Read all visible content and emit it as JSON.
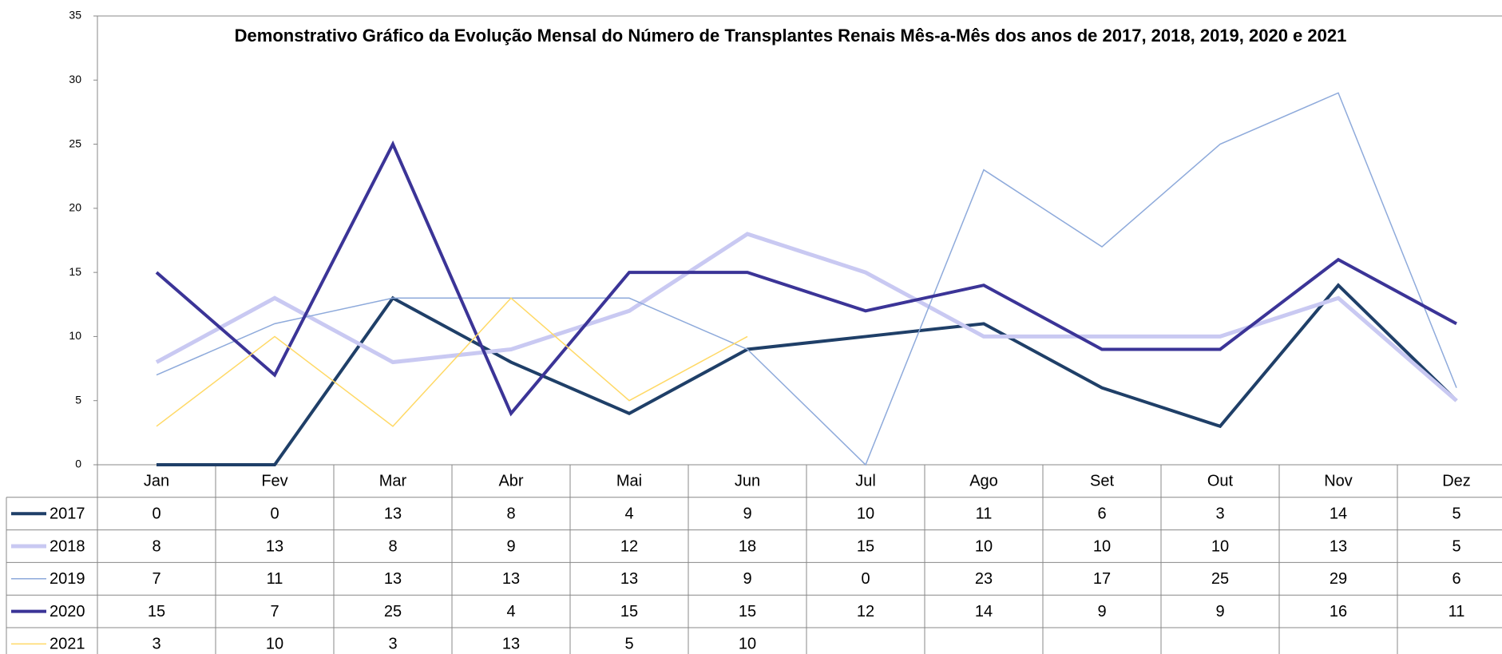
{
  "chart_data": {
    "type": "line",
    "title": "Demonstrativo Gráfico da Evolução Mensal do Número de Transplantes Renais Mês-a-Mês dos anos de  2017, 2018, 2019, 2020 e 2021",
    "categories": [
      "Jan",
      "Fev",
      "Mar",
      "Abr",
      "Mai",
      "Jun",
      "Jul",
      "Ago",
      "Set",
      "Out",
      "Nov",
      "Dez"
    ],
    "series": [
      {
        "name": "2017",
        "color": "#1f3f68",
        "width": 4,
        "values": [
          0,
          0,
          13,
          8,
          4,
          9,
          10,
          11,
          6,
          3,
          14,
          5
        ]
      },
      {
        "name": "2018",
        "color": "#c9c9f2",
        "width": 5,
        "values": [
          8,
          13,
          8,
          9,
          12,
          18,
          15,
          10,
          10,
          10,
          13,
          5
        ]
      },
      {
        "name": "2019",
        "color": "#8eaadb",
        "width": 1.5,
        "values": [
          7,
          11,
          13,
          13,
          13,
          9,
          0,
          23,
          17,
          25,
          29,
          6
        ]
      },
      {
        "name": "2020",
        "color": "#3b3497",
        "width": 4,
        "values": [
          15,
          7,
          25,
          4,
          15,
          15,
          12,
          14,
          9,
          9,
          16,
          11
        ]
      },
      {
        "name": "2021",
        "color": "#ffd966",
        "width": 1.5,
        "values": [
          3,
          10,
          3,
          13,
          5,
          10,
          null,
          null,
          null,
          null,
          null,
          null
        ]
      }
    ],
    "ylim": [
      0,
      35
    ],
    "yticks": [
      0,
      5,
      10,
      15,
      20,
      25,
      30,
      35
    ]
  }
}
